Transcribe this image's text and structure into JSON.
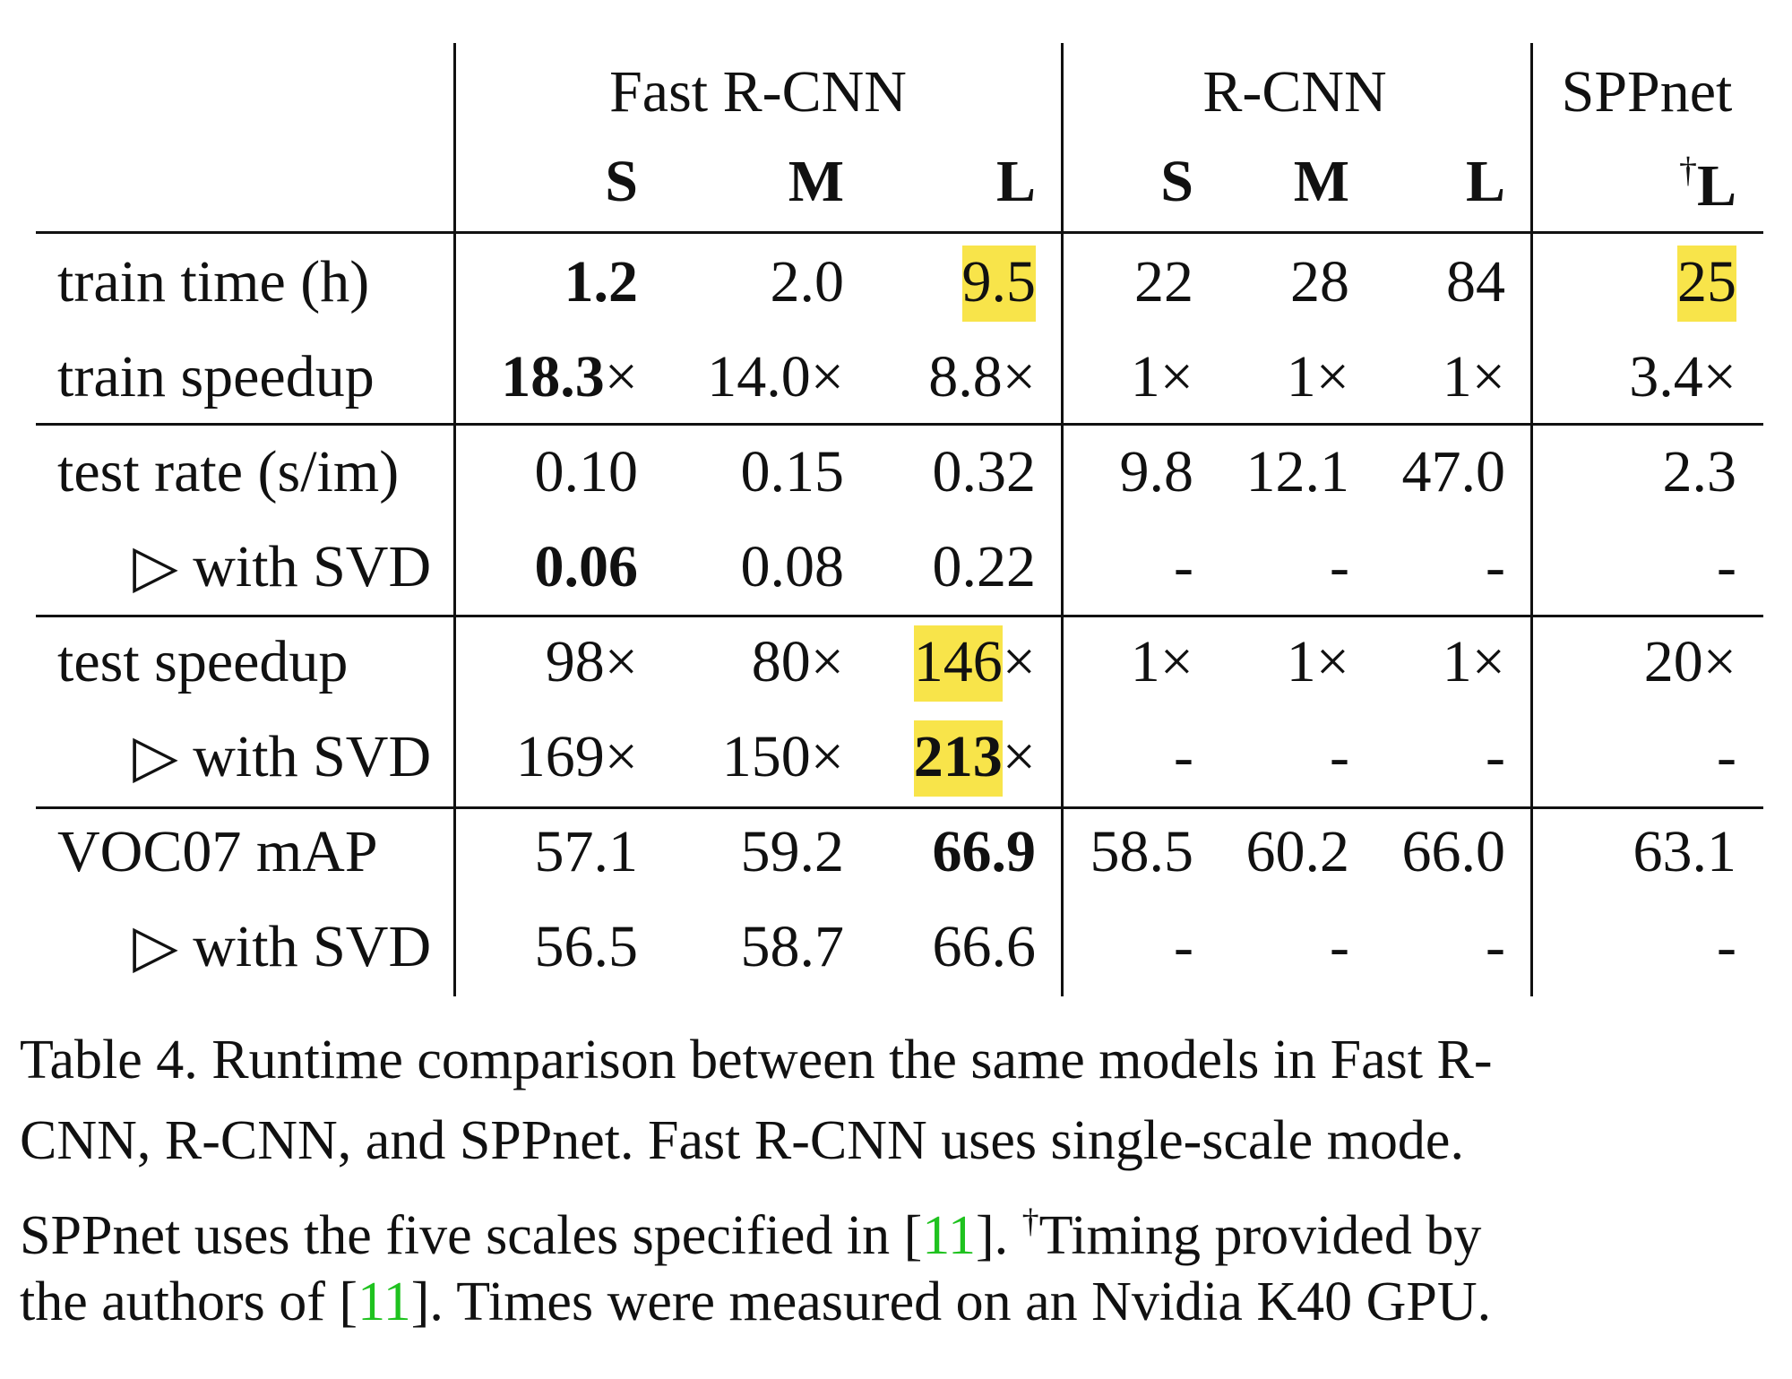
{
  "table": {
    "groups": [
      "Fast R-CNN",
      "R-CNN",
      "SPPnet"
    ],
    "subheaders": [
      "S",
      "M",
      "L",
      "S",
      "M",
      "L",
      "L"
    ],
    "sppnet_dagger": "†",
    "rows": [
      {
        "label": "train time (h)",
        "cells": [
          "1.2",
          "2.0",
          "9.5",
          "22",
          "28",
          "84",
          "25"
        ],
        "bold": [
          0
        ],
        "highlight": [
          2,
          6
        ]
      },
      {
        "label": "train speedup",
        "cells": [
          "18.3",
          "14.0",
          "8.8",
          "1",
          "1",
          "1",
          "3.4"
        ],
        "suffix": "×",
        "bold": [
          0
        ],
        "highlight": []
      },
      {
        "label": "test rate (s/im)",
        "cells": [
          "0.10",
          "0.15",
          "0.32",
          "9.8",
          "12.1",
          "47.0",
          "2.3"
        ],
        "bold": [],
        "highlight": []
      },
      {
        "label": "▷ with SVD",
        "cells": [
          "0.06",
          "0.08",
          "0.22",
          "-",
          "-",
          "-",
          "-"
        ],
        "bold": [
          0
        ],
        "highlight": []
      },
      {
        "label": "test speedup",
        "cells": [
          "98",
          "80",
          "146",
          "1",
          "1",
          "1",
          "20"
        ],
        "suffix": "×",
        "bold": [],
        "highlight": [
          2
        ]
      },
      {
        "label": "▷ with SVD",
        "cells": [
          "169",
          "150",
          "213",
          "-",
          "-",
          "-",
          "-"
        ],
        "suffix": "×",
        "bold": [
          2
        ],
        "highlight": [
          2
        ]
      },
      {
        "label": "VOC07 mAP",
        "cells": [
          "57.1",
          "59.2",
          "66.9",
          "58.5",
          "60.2",
          "66.0",
          "63.1"
        ],
        "bold": [
          2
        ],
        "highlight": []
      },
      {
        "label": "▷ with SVD",
        "cells": [
          "56.5",
          "58.7",
          "66.6",
          "-",
          "-",
          "-",
          "-"
        ],
        "bold": [],
        "highlight": []
      }
    ],
    "highlight_color": "#f8e44a"
  },
  "caption": {
    "lines": [
      [
        {
          "t": "Table 4. Runtime comparison between the same models in Fast R-"
        }
      ],
      [
        {
          "t": "CNN, R-CNN, and SPPnet. Fast R-CNN uses single-scale mode."
        }
      ],
      [
        {
          "t": "SPPnet uses the five scales specified in ["
        },
        {
          "t": "11",
          "ref": true
        },
        {
          "t": "]. "
        },
        {
          "t": "†",
          "sup": true
        },
        {
          "t": "Timing provided by"
        }
      ],
      [
        {
          "t": "the authors of ["
        },
        {
          "t": "11",
          "ref": true
        },
        {
          "t": "]. Times were measured on an Nvidia K40 GPU."
        }
      ]
    ],
    "ref_color": "#1fc21f"
  }
}
